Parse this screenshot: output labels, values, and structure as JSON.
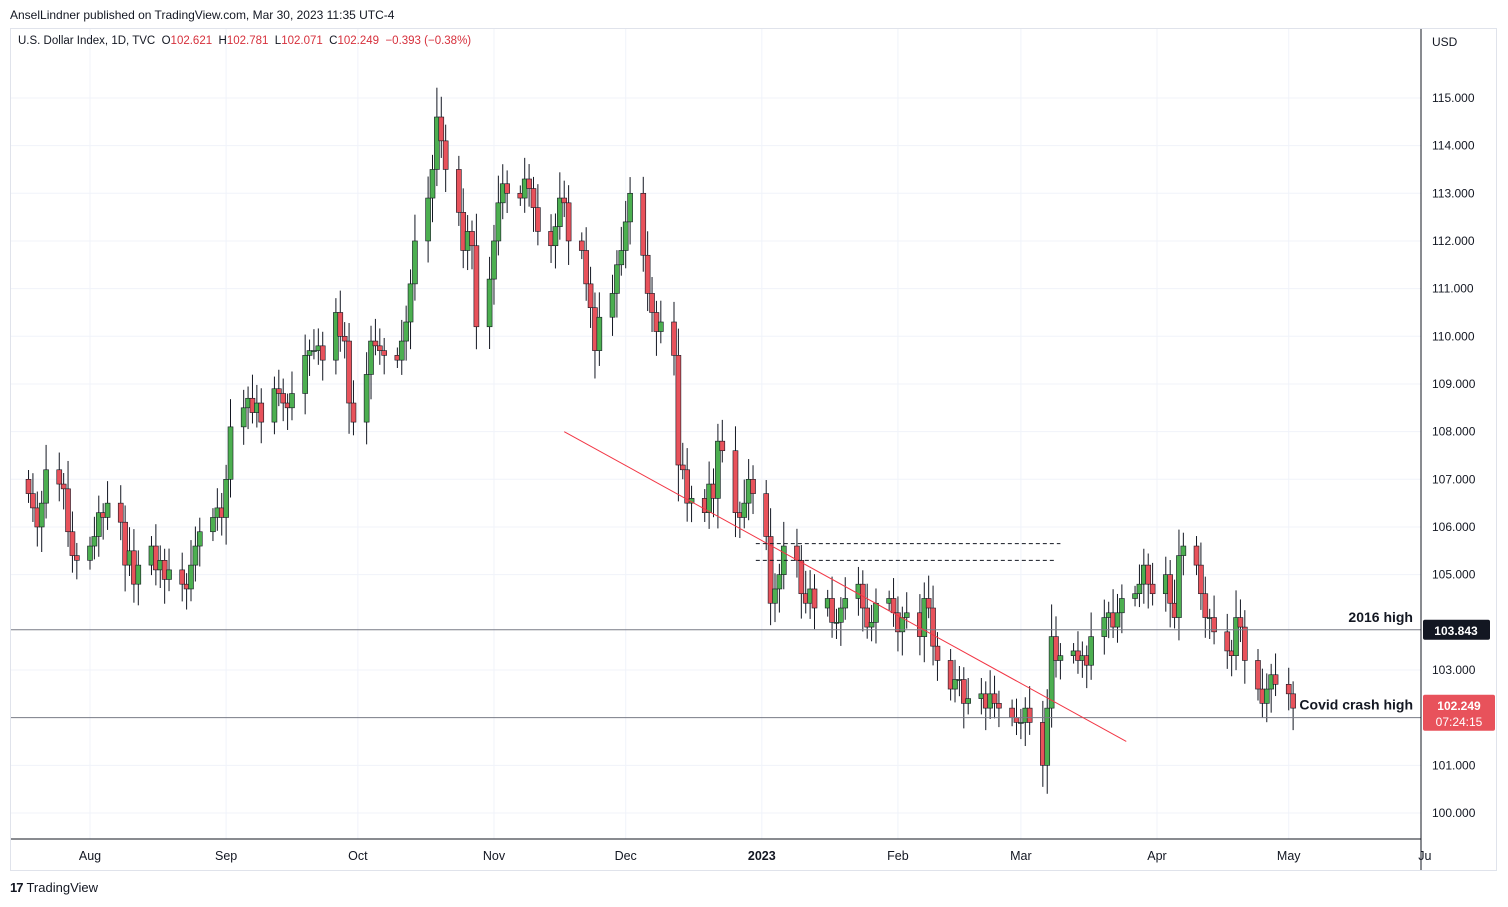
{
  "header": {
    "publisher": "AnselLindner published on TradingView.com, Mar 30, 2023 11:35 UTC-4"
  },
  "legend": {
    "symbol": "U.S. Dollar Index, 1D, TVC",
    "o_label": "O",
    "o_value": "102.621",
    "h_label": "H",
    "h_value": "102.781",
    "l_label": "L",
    "l_value": "102.071",
    "c_label": "C",
    "c_value": "102.249",
    "change": "−0.393 (−0.38%)"
  },
  "axis": {
    "currency": "USD"
  },
  "footer": {
    "brand": "TradingView",
    "logo": "17"
  },
  "colors": {
    "up": "#4caf50",
    "down": "#e8525b",
    "wick": "#131722",
    "trendline": "#f23645",
    "hline": "#787b86",
    "grid": "#f0f3fa",
    "price_badge": "#e8525b"
  },
  "chart_data": {
    "type": "candlestick",
    "symbol": "U.S. Dollar Index",
    "interval": "1D",
    "ylim": [
      99.5,
      115.8
    ],
    "grid": true,
    "y_ticks": [
      "100.000",
      "101.000",
      "103.000",
      "105.000",
      "106.000",
      "107.000",
      "108.000",
      "109.000",
      "110.000",
      "111.000",
      "112.000",
      "113.000",
      "114.000",
      "115.000"
    ],
    "x_ticks": [
      {
        "label": "Aug",
        "date": "2022-08-01"
      },
      {
        "label": "Sep",
        "date": "2022-09-01"
      },
      {
        "label": "Oct",
        "date": "2022-10-01"
      },
      {
        "label": "Nov",
        "date": "2022-11-01"
      },
      {
        "label": "Dec",
        "date": "2022-12-01"
      },
      {
        "label": "2023",
        "date": "2023-01-01"
      },
      {
        "label": "Feb",
        "date": "2023-02-01"
      },
      {
        "label": "Mar",
        "date": "2023-03-01"
      },
      {
        "label": "Apr",
        "date": "2023-04-01"
      },
      {
        "label": "May",
        "date": "2023-05-01"
      },
      {
        "label": "Ju",
        "date": "2023-06-01"
      }
    ],
    "closes": [
      106.7,
      106.4,
      106.0,
      106.5,
      107.2,
      106.9,
      106.8,
      105.9,
      105.4,
      105.3,
      105.6,
      105.8,
      106.3,
      106.2,
      106.5,
      106.1,
      105.2,
      105.5,
      104.8,
      105.2,
      105.6,
      105.1,
      105.3,
      104.9,
      105.1,
      104.8,
      104.7,
      105.2,
      105.6,
      105.9,
      106.2,
      106.4,
      106.2,
      107.0,
      108.1,
      108.5,
      108.7,
      108.4,
      108.6,
      108.2,
      108.9,
      108.8,
      108.6,
      108.5,
      108.8,
      109.6,
      109.7,
      109.7,
      109.8,
      109.5,
      110.5,
      110.0,
      109.9,
      108.6,
      108.2,
      109.2,
      109.9,
      109.8,
      109.7,
      109.6,
      109.5,
      109.9,
      110.3,
      111.1,
      112.0,
      112.9,
      113.5,
      114.6,
      114.1,
      113.5,
      112.6,
      111.8,
      112.2,
      111.9,
      110.2,
      111.2,
      112.0,
      112.8,
      113.2,
      113.0,
      112.9,
      113.3,
      113.1,
      112.7,
      112.2,
      111.9,
      112.3,
      112.9,
      112.8,
      112.0,
      111.8,
      111.1,
      110.6,
      109.7,
      110.4,
      110.9,
      111.5,
      111.8,
      112.4,
      113.0,
      111.7,
      110.9,
      110.5,
      110.1,
      110.3,
      109.6,
      107.3,
      107.2,
      106.5,
      106.6,
      106.3,
      106.9,
      106.6,
      107.8,
      107.6,
      106.3,
      106.2,
      106.5,
      107.0,
      106.7,
      105.8,
      104.4,
      104.7,
      105.0,
      105.6,
      105.3,
      104.6,
      104.4,
      104.7,
      104.3,
      104.5,
      104.0,
      104.0,
      104.3,
      104.5,
      104.8,
      104.3,
      103.9,
      104.0,
      104.4,
      104.5,
      104.2,
      103.8,
      104.1,
      104.2,
      103.7,
      104.5,
      104.3,
      103.5,
      103.2,
      102.6,
      102.8,
      102.8,
      102.3,
      102.4,
      102.5,
      102.2,
      102.5,
      102.3,
      102.2,
      102.0,
      101.9,
      101.9,
      102.2,
      101.9,
      101.0,
      102.2,
      103.7,
      103.2,
      103.3,
      103.4,
      103.2,
      103.3,
      103.1,
      103.7,
      104.1,
      104.2,
      103.9,
      104.2,
      104.5,
      104.6,
      104.8,
      105.2,
      104.8,
      104.6,
      105.0,
      104.4,
      104.1,
      105.4,
      105.6,
      105.2,
      104.6,
      104.1,
      104.1,
      103.8,
      103.4,
      103.3,
      104.1,
      103.9,
      103.2,
      102.6,
      102.3,
      102.6,
      102.9,
      102.7,
      102.5,
      102.2
    ]
  },
  "annotations": {
    "hline_2016_label": "2016 high",
    "hline_2016_value": 103.843,
    "hline_2016_badge": "103.843",
    "hline_covid_label": "Covid crash high",
    "hline_covid_value": 102.0,
    "last_price_badge": "102.249",
    "countdown": "07:24:15",
    "trendline_start": {
      "date": "2022-11-17",
      "value": 108.0
    },
    "trendline_end": {
      "date": "2023-03-25",
      "value": 101.5
    },
    "dashed_high_1": {
      "from": "2023-01-01",
      "to": "2023-03-10",
      "value": 105.65
    },
    "dashed_high_2": {
      "from": "2023-01-01",
      "to": "2023-03-09",
      "value": 105.3
    }
  }
}
